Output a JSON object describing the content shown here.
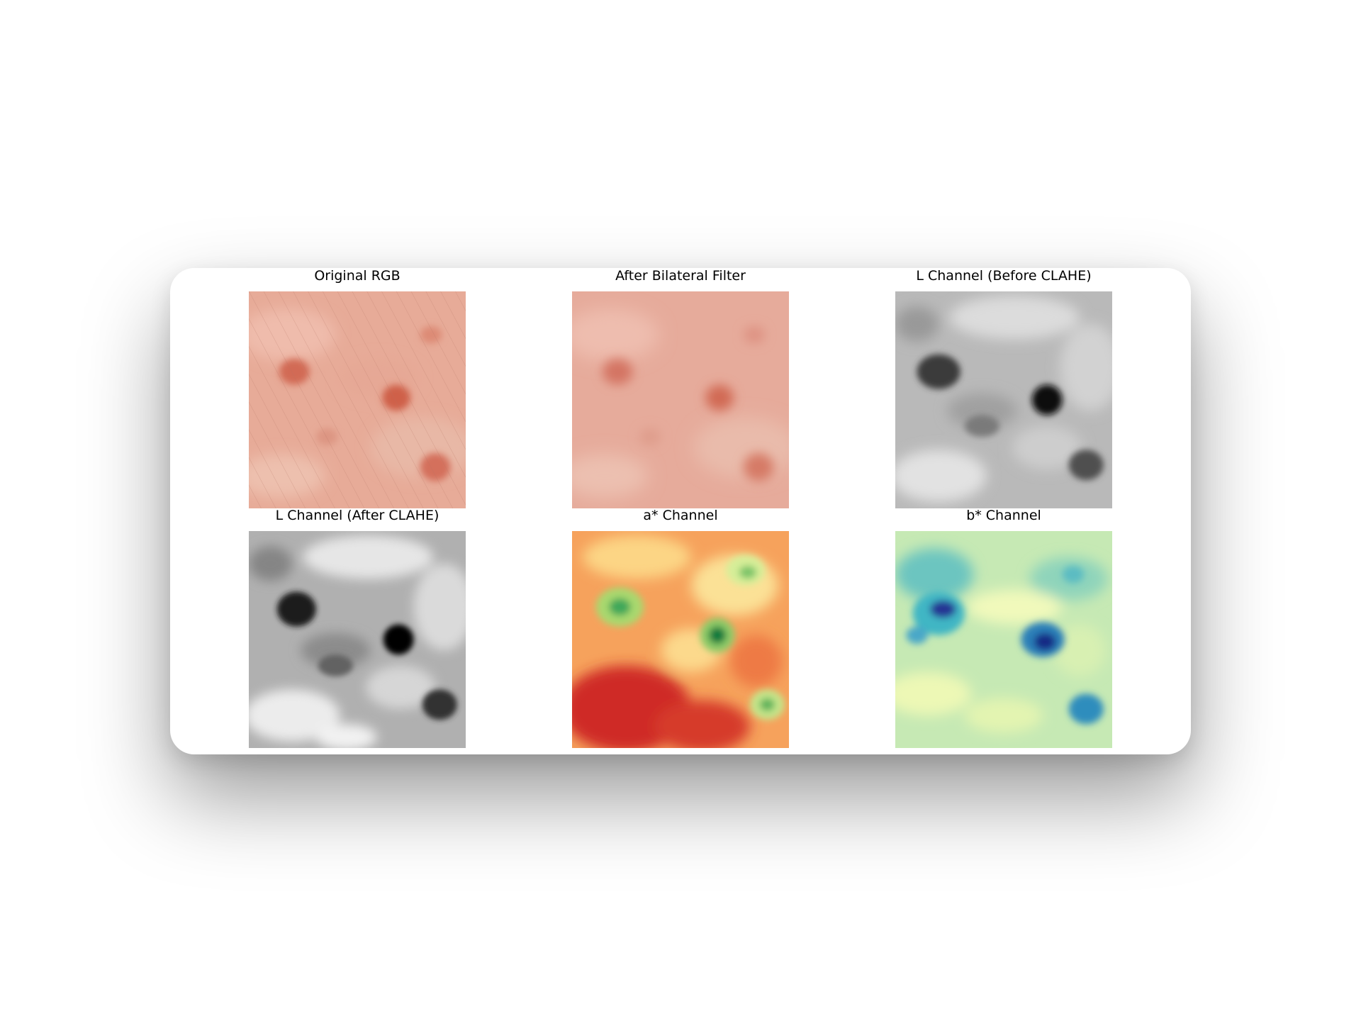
{
  "figure": {
    "panels": [
      {
        "title": "Original RGB",
        "colormap": "rgb"
      },
      {
        "title": "After Bilateral Filter",
        "colormap": "rgb-smoothed"
      },
      {
        "title": "L Channel (Before CLAHE)",
        "colormap": "gray"
      },
      {
        "title": "L Channel (After CLAHE)",
        "colormap": "gray"
      },
      {
        "title": "a* Channel",
        "colormap": "RdYlGn"
      },
      {
        "title": "b* Channel",
        "colormap": "YlGnBu"
      }
    ]
  }
}
